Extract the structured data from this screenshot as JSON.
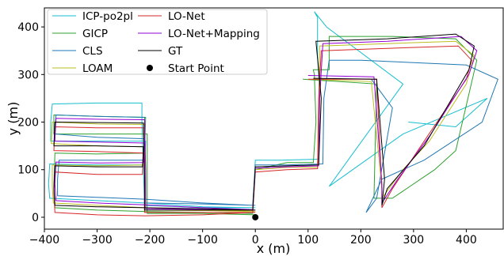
{
  "chart_data": {
    "type": "line",
    "title": "",
    "xlabel": "x (m)",
    "ylabel": "y (m)",
    "xlim": [
      -400,
      470
    ],
    "ylim": [
      -25,
      440
    ],
    "xticks": [
      -400,
      -300,
      -200,
      -100,
      0,
      100,
      200,
      300,
      400
    ],
    "xtick_labels": [
      "−400",
      "−300",
      "−200",
      "−100",
      "0",
      "100",
      "200",
      "300",
      "400"
    ],
    "yticks": [
      0,
      100,
      200,
      300,
      400
    ],
    "ytick_labels": [
      "0",
      "100",
      "200",
      "300",
      "400"
    ],
    "grid": false,
    "legend_position": "top-left",
    "series": [
      {
        "name": "ICP-po2pl",
        "color": "#17becf",
        "points": [
          [
            0,
            20
          ],
          [
            -100,
            20
          ],
          [
            -210,
            25
          ],
          [
            -212,
            100
          ],
          [
            -215,
            200
          ],
          [
            -215,
            240
          ],
          [
            -300,
            240
          ],
          [
            -385,
            238
          ],
          [
            -388,
            200
          ],
          [
            -388,
            160
          ],
          [
            -300,
            160
          ],
          [
            -208,
            160
          ],
          [
            -210,
            110
          ],
          [
            -300,
            110
          ],
          [
            -390,
            112
          ],
          [
            -392,
            70
          ],
          [
            -390,
            40
          ],
          [
            -300,
            35
          ],
          [
            -210,
            30
          ],
          [
            -100,
            22
          ],
          [
            -5,
            20
          ],
          [
            0,
            120
          ],
          [
            50,
            120
          ],
          [
            120,
            122
          ],
          [
            122,
            250
          ],
          [
            120,
            300
          ],
          [
            118,
            340
          ],
          [
            118,
            420
          ],
          [
            112,
            432
          ],
          [
            135,
            400
          ],
          [
            280,
            280
          ],
          [
            140,
            65
          ],
          [
            280,
            175
          ],
          [
            440,
            250
          ],
          [
            380,
            190
          ],
          [
            290,
            200
          ]
        ]
      },
      {
        "name": "GICP",
        "color": "#2ca02c",
        "points": [
          [
            0,
            5
          ],
          [
            -100,
            8
          ],
          [
            -205,
            8
          ],
          [
            -205,
            100
          ],
          [
            -205,
            175
          ],
          [
            -300,
            175
          ],
          [
            -382,
            175
          ],
          [
            -382,
            215
          ],
          [
            -300,
            212
          ],
          [
            -208,
            210
          ],
          [
            -210,
            135
          ],
          [
            -300,
            133
          ],
          [
            -380,
            135
          ],
          [
            -382,
            65
          ],
          [
            -380,
            20
          ],
          [
            -300,
            15
          ],
          [
            -205,
            12
          ],
          [
            -100,
            10
          ],
          [
            -5,
            8
          ],
          [
            0,
            100
          ],
          [
            60,
            115
          ],
          [
            110,
            115
          ],
          [
            115,
            200
          ],
          [
            112,
            300
          ],
          [
            110,
            310
          ],
          [
            140,
            310
          ],
          [
            140,
            380
          ],
          [
            260,
            380
          ],
          [
            380,
            375
          ],
          [
            420,
            330
          ],
          [
            380,
            140
          ],
          [
            340,
            100
          ],
          [
            260,
            40
          ],
          [
            225,
            40
          ],
          [
            230,
            280
          ],
          [
            90,
            290
          ]
        ]
      },
      {
        "name": "CLS",
        "color": "#1f77b4",
        "points": [
          [
            0,
            25
          ],
          [
            -100,
            28
          ],
          [
            -208,
            30
          ],
          [
            -210,
            100
          ],
          [
            -210,
            210
          ],
          [
            -300,
            212
          ],
          [
            -378,
            215
          ],
          [
            -380,
            175
          ],
          [
            -300,
            168
          ],
          [
            -210,
            165
          ],
          [
            -212,
            120
          ],
          [
            -300,
            120
          ],
          [
            -372,
            120
          ],
          [
            -375,
            80
          ],
          [
            -375,
            45
          ],
          [
            -300,
            42
          ],
          [
            -210,
            38
          ],
          [
            -100,
            30
          ],
          [
            -5,
            25
          ],
          [
            0,
            110
          ],
          [
            60,
            110
          ],
          [
            128,
            112
          ],
          [
            130,
            250
          ],
          [
            140,
            330
          ],
          [
            200,
            330
          ],
          [
            300,
            325
          ],
          [
            400,
            320
          ],
          [
            460,
            290
          ],
          [
            430,
            200
          ],
          [
            320,
            120
          ],
          [
            240,
            80
          ],
          [
            210,
            10
          ],
          [
            230,
            40
          ],
          [
            260,
            230
          ],
          [
            220,
            290
          ]
        ]
      },
      {
        "name": "LOAM",
        "color": "#bcbd22",
        "points": [
          [
            0,
            12
          ],
          [
            -100,
            14
          ],
          [
            -208,
            15
          ],
          [
            -208,
            100
          ],
          [
            -210,
            195
          ],
          [
            -300,
            196
          ],
          [
            -385,
            200
          ],
          [
            -387,
            155
          ],
          [
            -300,
            150
          ],
          [
            -210,
            148
          ],
          [
            -210,
            110
          ],
          [
            -300,
            108
          ],
          [
            -385,
            110
          ],
          [
            -385,
            65
          ],
          [
            -383,
            30
          ],
          [
            -300,
            25
          ],
          [
            -208,
            20
          ],
          [
            -100,
            15
          ],
          [
            -5,
            14
          ],
          [
            0,
            100
          ],
          [
            60,
            105
          ],
          [
            118,
            105
          ],
          [
            120,
            200
          ],
          [
            122,
            360
          ],
          [
            250,
            365
          ],
          [
            380,
            370
          ],
          [
            415,
            340
          ],
          [
            400,
            280
          ],
          [
            330,
            160
          ],
          [
            280,
            100
          ],
          [
            240,
            40
          ],
          [
            240,
            60
          ],
          [
            220,
            285
          ],
          [
            100,
            290
          ]
        ]
      },
      {
        "name": "LO-Net",
        "color": "#d62728",
        "points": [
          [
            0,
            10
          ],
          [
            -100,
            10
          ],
          [
            -210,
            10
          ],
          [
            -210,
            100
          ],
          [
            -212,
            188
          ],
          [
            -300,
            188
          ],
          [
            -380,
            190
          ],
          [
            -382,
            140
          ],
          [
            -300,
            138
          ],
          [
            -212,
            135
          ],
          [
            -214,
            90
          ],
          [
            -300,
            90
          ],
          [
            -380,
            95
          ],
          [
            -382,
            50
          ],
          [
            -380,
            10
          ],
          [
            -300,
            5
          ],
          [
            -210,
            3
          ],
          [
            -100,
            5
          ],
          [
            -5,
            10
          ],
          [
            0,
            95
          ],
          [
            60,
            100
          ],
          [
            118,
            102
          ],
          [
            120,
            250
          ],
          [
            125,
            350
          ],
          [
            250,
            355
          ],
          [
            385,
            360
          ],
          [
            410,
            330
          ],
          [
            400,
            290
          ],
          [
            320,
            160
          ],
          [
            260,
            60
          ],
          [
            240,
            20
          ],
          [
            240,
            60
          ],
          [
            230,
            290
          ],
          [
            100,
            290
          ]
        ]
      },
      {
        "name": "LO-Net+Mapping",
        "color": "#9400d3",
        "points": [
          [
            0,
            15
          ],
          [
            -100,
            16
          ],
          [
            -208,
            18
          ],
          [
            -208,
            100
          ],
          [
            -210,
            205
          ],
          [
            -300,
            206
          ],
          [
            -378,
            208
          ],
          [
            -380,
            160
          ],
          [
            -300,
            158
          ],
          [
            -210,
            156
          ],
          [
            -212,
            115
          ],
          [
            -300,
            114
          ],
          [
            -378,
            116
          ],
          [
            -380,
            70
          ],
          [
            -378,
            35
          ],
          [
            -300,
            30
          ],
          [
            -208,
            26
          ],
          [
            -100,
            20
          ],
          [
            -5,
            16
          ],
          [
            0,
            103
          ],
          [
            60,
            106
          ],
          [
            120,
            108
          ],
          [
            122,
            250
          ],
          [
            128,
            365
          ],
          [
            250,
            370
          ],
          [
            390,
            380
          ],
          [
            420,
            350
          ],
          [
            405,
            300
          ],
          [
            330,
            170
          ],
          [
            270,
            80
          ],
          [
            240,
            30
          ],
          [
            240,
            70
          ],
          [
            225,
            295
          ],
          [
            100,
            298
          ]
        ]
      },
      {
        "name": "GT",
        "color": "#000000",
        "points": [
          [
            0,
            15
          ],
          [
            -100,
            15
          ],
          [
            -210,
            15
          ],
          [
            -210,
            100
          ],
          [
            -212,
            198
          ],
          [
            -300,
            199
          ],
          [
            -380,
            200
          ],
          [
            -382,
            150
          ],
          [
            -300,
            150
          ],
          [
            -212,
            148
          ],
          [
            -214,
            106
          ],
          [
            -300,
            106
          ],
          [
            -380,
            108
          ],
          [
            -382,
            60
          ],
          [
            -380,
            25
          ],
          [
            -300,
            22
          ],
          [
            -210,
            20
          ],
          [
            -100,
            18
          ],
          [
            -5,
            15
          ],
          [
            0,
            106
          ],
          [
            60,
            108
          ],
          [
            120,
            110
          ],
          [
            125,
            250
          ],
          [
            115,
            370
          ],
          [
            250,
            375
          ],
          [
            380,
            385
          ],
          [
            415,
            360
          ],
          [
            405,
            310
          ],
          [
            320,
            150
          ],
          [
            250,
            60
          ],
          [
            240,
            25
          ],
          [
            245,
            80
          ],
          [
            230,
            290
          ],
          [
            110,
            292
          ]
        ]
      }
    ],
    "start_point": {
      "name": "Start Point",
      "x": 0,
      "y": 0,
      "color": "#000000"
    }
  }
}
